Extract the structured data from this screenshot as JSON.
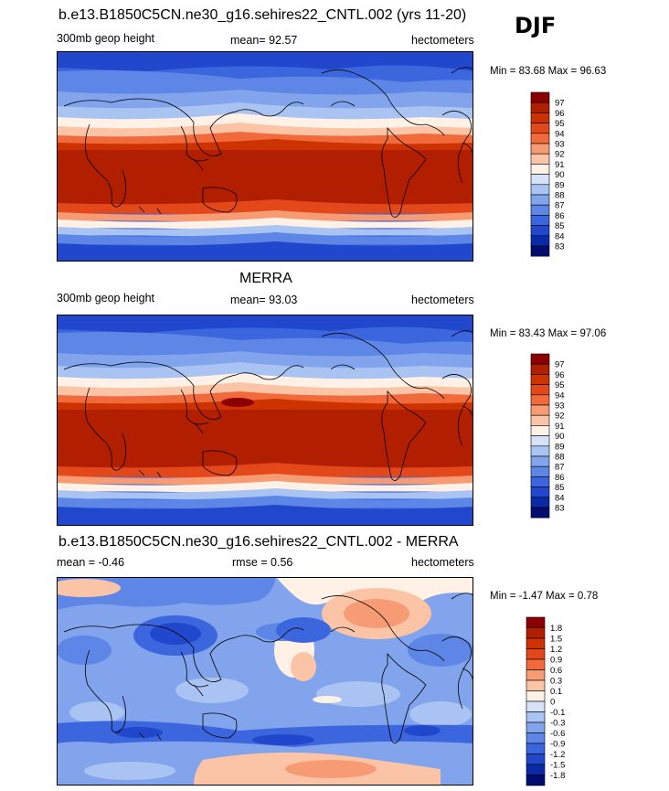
{
  "season": "DJF",
  "panels": [
    {
      "id": "model",
      "title": "b.e13.B1850C5CN.ne30_g16.sehires22_CNTL.002 (yrs 11-20)",
      "left_label": "300mb geop height",
      "mean_label": "mean=",
      "mean_value": "92.57",
      "rmse_label": "",
      "rmse_value": "",
      "units": "hectometers",
      "minmax": "Min =  83.68 Max =  96.63",
      "colorbar_labels": [
        "97",
        "96",
        "95",
        "94",
        "93",
        "92",
        "91",
        "90",
        "89",
        "88",
        "87",
        "86",
        "85",
        "84",
        "83"
      ]
    },
    {
      "id": "obs",
      "title": "MERRA",
      "left_label": "300mb geop height",
      "mean_label": "mean=",
      "mean_value": "93.03",
      "rmse_label": "",
      "rmse_value": "",
      "units": "hectometers",
      "minmax": "Min =  83.43 Max =  97.06",
      "colorbar_labels": [
        "97",
        "96",
        "95",
        "94",
        "93",
        "92",
        "91",
        "90",
        "89",
        "88",
        "87",
        "86",
        "85",
        "84",
        "83"
      ]
    },
    {
      "id": "diff",
      "title": "b.e13.B1850C5CN.ne30_g16.sehires22_CNTL.002 - MERRA",
      "left_label": "mean =",
      "mean_label": "",
      "mean_value": "-0.46",
      "rmse_label": "rmse =",
      "rmse_value": "0.56",
      "units": "hectometers",
      "minmax": "Min =  -1.47 Max =   0.78",
      "colorbar_labels": [
        "1.8",
        "1.5",
        "1.2",
        "0.9",
        "0.6",
        "0.3",
        "0.1",
        "0",
        "-0.1",
        "-0.3",
        "-0.6",
        "-0.9",
        "-1.2",
        "-1.5",
        "-1.8"
      ]
    }
  ],
  "colors": {
    "scale": [
      "#8b0000",
      "#b21e00",
      "#cd3300",
      "#e2481a",
      "#f06a3c",
      "#f79b74",
      "#fcc4a6",
      "#fff1e6",
      "#d6e2f8",
      "#a9c3f2",
      "#82a4ec",
      "#5d86e6",
      "#3c66de",
      "#2148cc",
      "#0b2aa8",
      "#020c6e"
    ]
  }
}
